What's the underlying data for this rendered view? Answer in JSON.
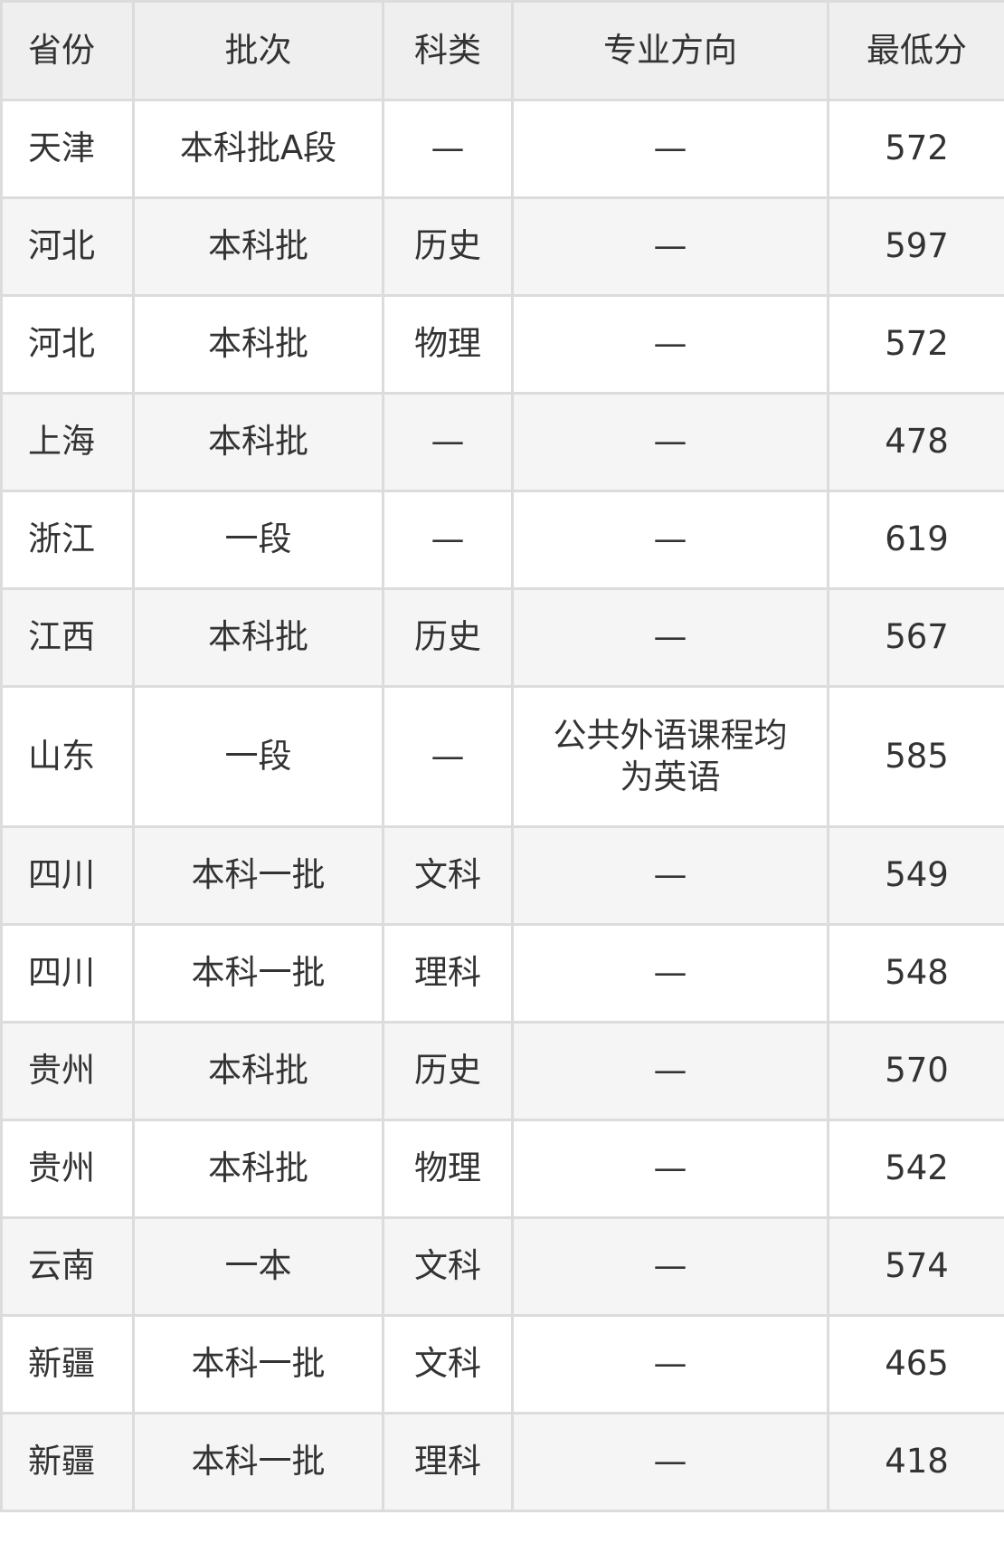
{
  "headers": [
    "省份",
    "批次",
    "科类",
    "专业方向",
    "最低分"
  ],
  "rows": [
    [
      "天津",
      "本科批A段",
      "—",
      "—",
      "572"
    ],
    [
      "河北",
      "本科批",
      "历史",
      "—",
      "597"
    ],
    [
      "河北",
      "本科批",
      "物理",
      "—",
      "572"
    ],
    [
      "上海",
      "本科批",
      "—",
      "—",
      "478"
    ],
    [
      "浙江",
      "一段",
      "—",
      "—",
      "619"
    ],
    [
      "江西",
      "本科批",
      "历史",
      "—",
      "567"
    ],
    [
      "山东",
      "一段",
      "—",
      "公共外语课程均为英语",
      "585"
    ],
    [
      "四川",
      "本科一批",
      "文科",
      "—",
      "549"
    ],
    [
      "四川",
      "本科一批",
      "理科",
      "—",
      "548"
    ],
    [
      "贵州",
      "本科批",
      "历史",
      "—",
      "570"
    ],
    [
      "贵州",
      "本科批",
      "物理",
      "—",
      "542"
    ],
    [
      "云南",
      "一本",
      "文科",
      "—",
      "574"
    ],
    [
      "新疆",
      "本科一批",
      "文科",
      "—",
      "465"
    ],
    [
      "新疆",
      "本科一批",
      "理科",
      "—",
      "418"
    ]
  ]
}
